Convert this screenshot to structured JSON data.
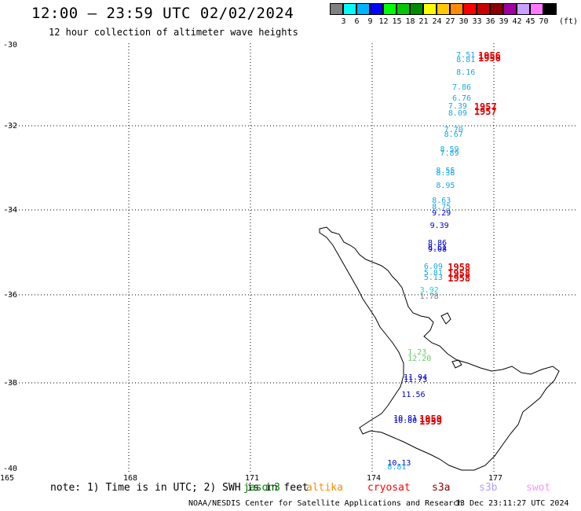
{
  "header": {
    "title": "12:00 – 23:59 UTC 02/02/2024",
    "subtitle": "12 hour collection of altimeter wave heights"
  },
  "legend": {
    "unit": "(ft)",
    "scale": [
      {
        "label": "3",
        "color": "#808080"
      },
      {
        "label": "6",
        "color": "#00ffff"
      },
      {
        "label": "9",
        "color": "#00b4ff"
      },
      {
        "label": "12",
        "color": "#0000ff"
      },
      {
        "label": "15",
        "color": "#00ff00"
      },
      {
        "label": "18",
        "color": "#00c800"
      },
      {
        "label": "21",
        "color": "#008c00"
      },
      {
        "label": "24",
        "color": "#ffff00"
      },
      {
        "label": "27",
        "color": "#ffc800"
      },
      {
        "label": "30",
        "color": "#ff8c00"
      },
      {
        "label": "33",
        "color": "#ff0000"
      },
      {
        "label": "36",
        "color": "#c80000"
      },
      {
        "label": "39",
        "color": "#8c0000"
      },
      {
        "label": "42",
        "color": "#a000a0"
      },
      {
        "label": "45",
        "color": "#c8a0ff"
      },
      {
        "label": "70",
        "color": "#ff78ff"
      },
      {
        "label": "",
        "color": "#000000"
      }
    ]
  },
  "axes": {
    "lat_labels": [
      "-30",
      "-32",
      "-34",
      "-36",
      "-38",
      "-40"
    ],
    "lon_labels": [
      "165",
      "168",
      "171",
      "174",
      "177"
    ]
  },
  "observations": [
    {
      "value": "7.51",
      "lat": -30.3,
      "lon": 176.5,
      "color": "#1ba8e0"
    },
    {
      "value": "8.81",
      "lat": -30.4,
      "lon": 176.5,
      "color": "#1ba8e0"
    },
    {
      "value": "8.16",
      "lat": -30.7,
      "lon": 176.5,
      "color": "#1ba8e0"
    },
    {
      "value": "7.86",
      "lat": -31.05,
      "lon": 176.4,
      "color": "#1ba8e0"
    },
    {
      "value": "6.76",
      "lat": -31.3,
      "lon": 176.4,
      "color": "#1ba8e0"
    },
    {
      "value": "7.39",
      "lat": -31.5,
      "lon": 176.3,
      "color": "#1ba8e0"
    },
    {
      "value": "8.09",
      "lat": -31.65,
      "lon": 176.3,
      "color": "#1ba8e0"
    },
    {
      "value": "7.70",
      "lat": -32.05,
      "lon": 176.2,
      "color": "#1ba8e0"
    },
    {
      "value": "8.67",
      "lat": -32.15,
      "lon": 176.2,
      "color": "#1ba8e0"
    },
    {
      "value": "8.59",
      "lat": -32.5,
      "lon": 176.1,
      "color": "#1ba8e0"
    },
    {
      "value": "7.89",
      "lat": -32.6,
      "lon": 176.1,
      "color": "#1ba8e0"
    },
    {
      "value": "8.55",
      "lat": -33.0,
      "lon": 176.0,
      "color": "#1ba8e0"
    },
    {
      "value": "8.38",
      "lat": -33.05,
      "lon": 176.0,
      "color": "#1ba8e0"
    },
    {
      "value": "8.95",
      "lat": -33.35,
      "lon": 176.0,
      "color": "#1ba8e0"
    },
    {
      "value": "8.63",
      "lat": -33.7,
      "lon": 175.9,
      "color": "#1ba8e0"
    },
    {
      "value": "8.75",
      "lat": -33.85,
      "lon": 175.9,
      "color": "#1ba8e0"
    },
    {
      "value": "9.29",
      "lat": -34.0,
      "lon": 175.9,
      "color": "#0000d0"
    },
    {
      "value": "9.39",
      "lat": -34.3,
      "lon": 175.85,
      "color": "#0000d0"
    },
    {
      "value": "8.86",
      "lat": -34.7,
      "lon": 175.8,
      "color": "#0000d0"
    },
    {
      "value": "8.61",
      "lat": -34.8,
      "lon": 175.8,
      "color": "#0000d0"
    },
    {
      "value": "9.08",
      "lat": -34.85,
      "lon": 175.8,
      "color": "#0000d0"
    },
    {
      "value": "6.09",
      "lat": -35.25,
      "lon": 175.7,
      "color": "#1ba8e0"
    },
    {
      "value": "5.81",
      "lat": -35.4,
      "lon": 175.7,
      "color": "#1ba8e0"
    },
    {
      "value": "5.13",
      "lat": -35.5,
      "lon": 175.7,
      "color": "#1ba8e0"
    },
    {
      "value": "3.92",
      "lat": -35.8,
      "lon": 175.6,
      "color": "#20d0d0"
    },
    {
      "value": "1.78",
      "lat": -35.95,
      "lon": 175.6,
      "color": "#808080"
    },
    {
      "value": "1.23",
      "lat": -37.25,
      "lon": 175.3,
      "color": "#60d060"
    },
    {
      "value": "12.20",
      "lat": -37.4,
      "lon": 175.3,
      "color": "#60d060"
    },
    {
      "value": "11.94",
      "lat": -37.85,
      "lon": 175.2,
      "color": "#0000d0"
    },
    {
      "value": "11.73",
      "lat": -37.9,
      "lon": 175.2,
      "color": "#0000d0"
    },
    {
      "value": "11.56",
      "lat": -38.25,
      "lon": 175.15,
      "color": "#0000d0"
    },
    {
      "value": "10.81",
      "lat": -38.8,
      "lon": 174.95,
      "color": "#0000d0"
    },
    {
      "value": "10.80",
      "lat": -38.85,
      "lon": 174.95,
      "color": "#0000d0"
    },
    {
      "value": "10.13",
      "lat": -39.85,
      "lon": 174.8,
      "color": "#0000d0"
    },
    {
      "value": "8.81",
      "lat": -39.95,
      "lon": 174.8,
      "color": "#1ba8e0"
    }
  ],
  "track_years": [
    {
      "value": "1956",
      "lat": -30.3,
      "lon": 177.0
    },
    {
      "value": "1956",
      "lat": -30.35,
      "lon": 177.0
    },
    {
      "value": "1957",
      "lat": -31.5,
      "lon": 176.9
    },
    {
      "value": "1957",
      "lat": -31.6,
      "lon": 176.9
    },
    {
      "value": "1958",
      "lat": -35.25,
      "lon": 176.25
    },
    {
      "value": "1958",
      "lat": -35.4,
      "lon": 176.25
    },
    {
      "value": "1958",
      "lat": -35.5,
      "lon": 176.25
    },
    {
      "value": "1959",
      "lat": -38.8,
      "lon": 175.55
    },
    {
      "value": "1959",
      "lat": -38.85,
      "lon": 175.55
    }
  ],
  "note": {
    "label": "note: 1) Time is in UTC; 2) SWH is in feet",
    "missions": [
      {
        "name": "jason3",
        "color": "#008000"
      },
      {
        "name": "altika",
        "color": "#ff8c00"
      },
      {
        "name": "cryosat",
        "color": "#ff0000"
      },
      {
        "name": "s3a",
        "color": "#8b0000"
      },
      {
        "name": "s3b",
        "color": "#b0a0ff"
      },
      {
        "name": "swot",
        "color": "#ff90ff"
      }
    ]
  },
  "footer": {
    "credit": "NOAA/NESDIS Center for Satellite Applications and Research",
    "timestamp": "13 Dec 23:11:27 UTC 2024"
  }
}
